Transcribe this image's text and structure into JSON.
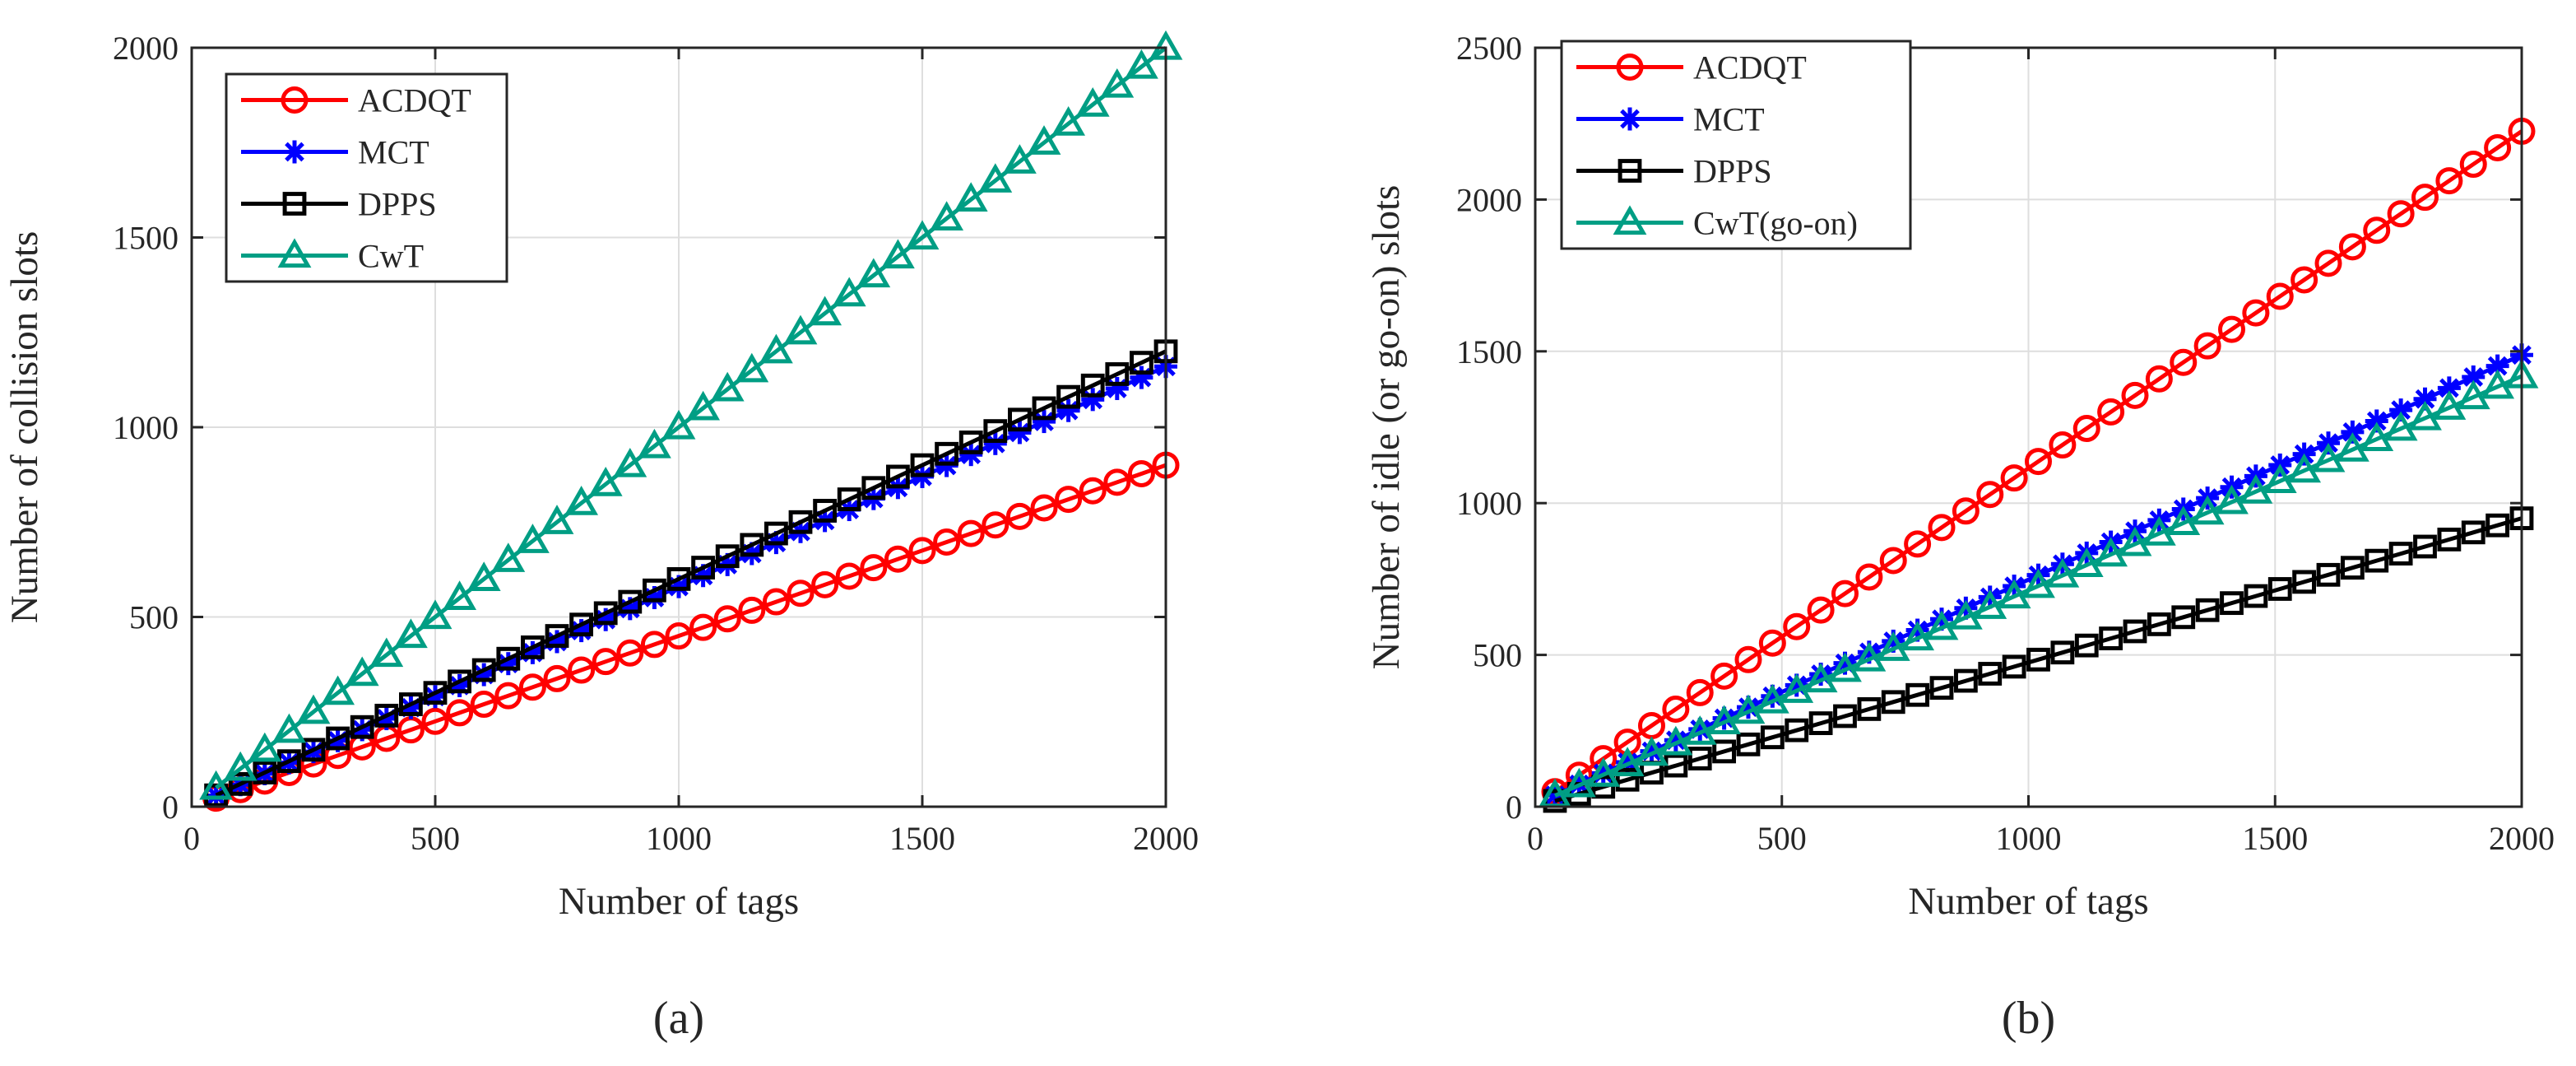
{
  "chart_data": [
    {
      "type": "line",
      "panel_label": "(a)",
      "xlabel": "Number of tags",
      "ylabel": "Number of collision slots",
      "xlim": [
        0,
        2000
      ],
      "ylim": [
        0,
        2000
      ],
      "xticks": [
        0,
        500,
        1000,
        1500,
        2000
      ],
      "yticks": [
        0,
        500,
        1000,
        1500,
        2000
      ],
      "grid": true,
      "legend_position": "top-left",
      "x": {
        "start": 50,
        "step": 50,
        "count": 40
      },
      "series": [
        {
          "name": "ACDQT",
          "marker": "circle",
          "color": "#ff0000",
          "slope": 0.45,
          "intercept": 0
        },
        {
          "name": "MCT",
          "marker": "asterisk",
          "color": "#0000ff",
          "slope": 0.58,
          "intercept": 0
        },
        {
          "name": "DPPS",
          "marker": "square",
          "color": "#000000",
          "slope": 0.6,
          "intercept": 0
        },
        {
          "name": "CwT",
          "marker": "triangle",
          "color": "#009e84",
          "slope": 1.0,
          "intercept": 0
        }
      ]
    },
    {
      "type": "line",
      "panel_label": "(b)",
      "xlabel": "Number of tags",
      "ylabel": "Number of idle (or go-on) slots",
      "xlim": [
        0,
        2000
      ],
      "ylim": [
        0,
        2500
      ],
      "xticks": [
        0,
        500,
        1000,
        1500,
        2000
      ],
      "yticks": [
        0,
        500,
        1000,
        1500,
        2000,
        2500
      ],
      "grid": true,
      "legend_position": "top-left",
      "x": {
        "start": 40,
        "step": 49,
        "count": 41
      },
      "series": [
        {
          "name": "ACDQT",
          "marker": "circle",
          "color": "#ff0000",
          "slope": 1.11,
          "intercept": 5
        },
        {
          "name": "MCT",
          "marker": "asterisk",
          "color": "#0000ff",
          "slope": 0.74,
          "intercept": 8
        },
        {
          "name": "DPPS",
          "marker": "square",
          "color": "#000000",
          "slope": 0.475,
          "intercept": 0
        },
        {
          "name": "CwT(go-on)",
          "marker": "triangle",
          "color": "#009e84",
          "slope": 0.705,
          "intercept": 8
        }
      ]
    }
  ]
}
